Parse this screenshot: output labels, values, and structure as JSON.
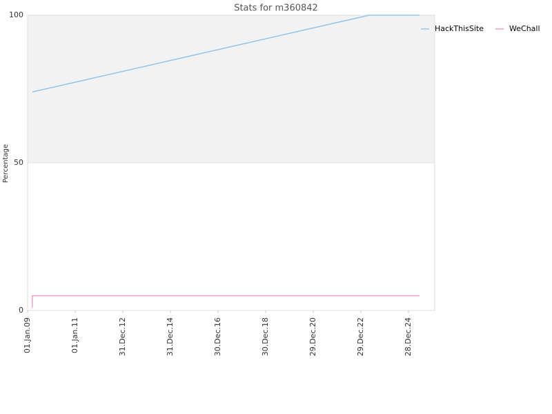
{
  "chart_data": {
    "type": "line",
    "title": "Stats for m360842",
    "y_label": "Percentage",
    "xlim": [
      2009.0,
      2026.1
    ],
    "xticks": [
      {
        "value": 2009.0,
        "label": "01.Jan.09"
      },
      {
        "value": 2011.0,
        "label": "01.Jan.11"
      },
      {
        "value": 2013.0,
        "label": "31.Dec.12"
      },
      {
        "value": 2015.0,
        "label": "31.Dec.14"
      },
      {
        "value": 2017.0,
        "label": "30.Dec.16"
      },
      {
        "value": 2019.0,
        "label": "30.Dec.18"
      },
      {
        "value": 2021.0,
        "label": "29.Dec.20"
      },
      {
        "value": 2023.0,
        "label": "29.Dec.22"
      },
      {
        "value": 2025.0,
        "label": "28.Dec.24"
      }
    ],
    "ylim": [
      0,
      100
    ],
    "yticks": [
      0,
      50,
      100
    ],
    "grid": true,
    "plot_bands": [
      {
        "from": 50,
        "to": 100,
        "color": "#f2f2f2"
      }
    ],
    "legend": "top-right",
    "series": [
      {
        "name": "HackThisSite",
        "color": "#90c4ee",
        "x": [
          2009.2,
          2023.35,
          2025.46
        ],
        "values": [
          74,
          100,
          100
        ]
      },
      {
        "name": "WeChall",
        "color": "#f0a0c8",
        "x": [
          2009.2,
          2009.2,
          2025.46
        ],
        "values": [
          1,
          5,
          5
        ]
      }
    ]
  }
}
